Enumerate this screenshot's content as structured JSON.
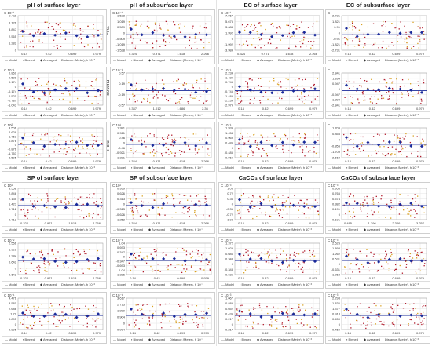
{
  "colors": {
    "points": "#b01a2a",
    "points_alt": "#d9a020",
    "model": "#1a2a9a",
    "averaged": "#1a2a9a",
    "grid": "#e6e6e6",
    "frame": "#cfcfcf"
  },
  "titles": [
    "pH of surface layer",
    "pH of subsurface layer",
    "EC of surface layer",
    "EC of subsurface layer",
    "SP of surface layer",
    "SP of subsurface layer",
    "CaCO₃ of surface layer",
    "CaCO₃ of subsurface layer"
  ],
  "row_labels": [
    "First",
    "Second",
    "Third"
  ],
  "legend": {
    "model": "Model",
    "binned": "Binned",
    "averaged": "Averaged",
    "distance": "Distance (Meter), h"
  },
  "panels": [
    {
      "exp": "C 10⁻¹",
      "dist_exp": "10⁻³",
      "yticks": [
        "9.411",
        "5.126",
        "3.847",
        "2.565",
        "1.282",
        "0"
      ],
      "xticks": [
        "0.14",
        "0.42",
        "0.699",
        "0.979"
      ]
    },
    {
      "exp": "C 10⁻¹",
      "dist_exp": "10⁻²",
      "yticks": [
        "1.528",
        "1.019",
        "0.509",
        "0",
        "-0.509",
        "-1.019",
        "-1.528"
      ],
      "xticks": [
        "0.324",
        "0.971",
        "1.618",
        "2.266"
      ]
    },
    {
      "exp": "C 10⁻¹",
      "dist_exp": "10⁻²",
      "yticks": [
        "7.967",
        "5.675",
        "3.684",
        "1.992",
        "0",
        "-1.992",
        "-3.984"
      ],
      "xticks": [
        "0.324",
        "0.971",
        "1.618",
        "2.266"
      ]
    },
    {
      "exp": "C",
      "dist_exp": "10⁻³",
      "yticks": [
        "2.731",
        "1.821",
        "0.91",
        "0",
        "-0.91",
        "-1.821",
        "-2.731"
      ],
      "xticks": [
        "0.14",
        "0.42",
        "0.699",
        "0.979"
      ]
    },
    {
      "exp": "C 10⁻¹",
      "dist_exp": "10⁻³",
      "yticks": [
        "0.869",
        "0.521",
        "0.174",
        "0",
        "-0.174",
        "-0.521",
        "-0.787",
        "-1.043"
      ],
      "xticks": [
        "0.14",
        "0.42",
        "0.699",
        "0.979"
      ]
    },
    {
      "exp": "C 10⁻¹",
      "dist_exp": "10⁻²",
      "yticks": [
        "0.57",
        "0.19",
        "-0.19",
        "-0.57"
      ],
      "xticks": [
        "0.337",
        "1.012",
        "1.686",
        "2.36"
      ]
    },
    {
      "exp": "C 10⁻¹",
      "dist_exp": "10⁻³",
      "yticks": [
        "2.234",
        "1.489",
        "0.745",
        "0",
        "-0.745",
        "-1.489",
        "-2.234",
        "-2.979"
      ],
      "xticks": [
        "0.14",
        "0.42",
        "0.699",
        "0.979"
      ]
    },
    {
      "exp": "C",
      "dist_exp": "10⁻³",
      "yticks": [
        "2.841",
        "1.894",
        "0.947",
        "0",
        "-0.947",
        "-1.894",
        "-2.841"
      ],
      "xticks": [
        "0.14",
        "0.42",
        "0.699",
        "0.979"
      ]
    },
    {
      "exp": "C 10²",
      "dist_exp": "10⁻³",
      "yticks": [
        "3.506",
        "2.629",
        "1.753",
        "0.876",
        "0",
        "-0.876",
        "-1.753",
        "-3.505"
      ],
      "xticks": [
        "0.14",
        "0.42",
        "0.699",
        "0.979"
      ]
    },
    {
      "exp": "C 10¹",
      "dist_exp": "10⁻²",
      "yticks": [
        "1.381",
        "0.921",
        "0.46",
        "0",
        "-0.46",
        "-0.921",
        "-1.381"
      ],
      "xticks": [
        "0.324",
        "0.971",
        "1.618",
        "2.266"
      ]
    },
    {
      "exp": "C 10⁻¹",
      "dist_exp": "10⁻³",
      "yticks": [
        "1.939",
        "1.454",
        "0.969",
        "0.485",
        "0",
        "-0.485",
        "-0.969"
      ],
      "xticks": [
        "0.14",
        "0.42",
        "0.699",
        "0.979"
      ]
    },
    {
      "exp": "C",
      "dist_exp": "10⁻³",
      "yticks": [
        "1.709",
        "0.855",
        "0",
        "-0.855",
        "-1.709",
        "-2.564"
      ],
      "xticks": [
        "0.14",
        "0.42",
        "0.699",
        "0.979"
      ]
    },
    {
      "exp": "C 10¹",
      "dist_exp": "10⁻²",
      "yticks": [
        "3.558",
        "2.846",
        "2.135",
        "1.423",
        "0.712",
        "0",
        "-0.712"
      ],
      "xticks": [
        "0.324",
        "0.971",
        "1.618",
        "2.266"
      ]
    },
    {
      "exp": "C 10¹",
      "dist_exp": "10⁻²",
      "yticks": [
        "0.939",
        "0.626",
        "0.313",
        "0",
        "-0.313",
        "-0.626",
        "-1.252"
      ],
      "xticks": [
        "0.324",
        "0.971",
        "1.618",
        "2.266"
      ]
    },
    {
      "exp": "C 10⁻³",
      "dist_exp": "10⁻³",
      "yticks": [
        "1.08",
        "0.72",
        "0.36",
        "0",
        "-0.36",
        "-0.72",
        "-1.08"
      ],
      "xticks": [
        "0.14",
        "0.42",
        "0.699",
        "0.979"
      ]
    },
    {
      "exp": "C 10⁻³",
      "dist_exp": "10⁻²",
      "yticks": [
        "0.956",
        "0.765",
        "0.574",
        "0.382",
        "0.191",
        "0",
        "-0.191"
      ],
      "xticks": [
        "0.485",
        "1.396",
        "2.326",
        "3.257"
      ]
    },
    {
      "exp": "C 10⁻²",
      "dist_exp": "10⁻²",
      "yticks": [
        "2.566",
        "1.926",
        "1.284",
        "0.642",
        "0",
        "-0.642"
      ],
      "xticks": [
        "0.324",
        "0.971",
        "1.618",
        "2.266"
      ]
    },
    {
      "exp": "C 10⁻¹",
      "dist_exp": "10⁻³",
      "yticks": [
        "1.04",
        "0.693",
        "0.347",
        "0",
        "-0.347",
        "-0.693",
        "-1.04",
        "-1.386"
      ],
      "xticks": [
        "0.14",
        "0.42",
        "0.699",
        "0.979"
      ]
    },
    {
      "exp": "C 10⁻³",
      "dist_exp": "10⁻³",
      "yticks": [
        "1.372",
        "1.029",
        "0.686",
        "0.343",
        "0",
        "-0.343",
        "-0.686"
      ],
      "xticks": [
        "0.14",
        "0.42",
        "0.699",
        "0.979"
      ]
    },
    {
      "exp": "C 10⁻³",
      "dist_exp": "10⁻³",
      "yticks": [
        "2.525",
        "1.893",
        "1.262",
        "0.631",
        "0",
        "-0.631",
        "-1.262"
      ],
      "xticks": [
        "0.14",
        "0.42",
        "0.699",
        "0.979"
      ]
    },
    {
      "exp": "C 10⁻¹",
      "dist_exp": "10⁻³",
      "yticks": [
        "4.476",
        "3.581",
        "2.686",
        "1.79",
        "0.895",
        "0",
        "-0.895"
      ],
      "xticks": [
        "0.14",
        "0.42",
        "0.699",
        "0.979"
      ]
    },
    {
      "exp": "C 10⁻¹",
      "dist_exp": "10⁻³",
      "yticks": [
        "3.617",
        "2.713",
        "1.809",
        "0.904",
        "0",
        "-0.904"
      ],
      "xticks": [
        "0.14",
        "0.42",
        "0.699",
        "0.979"
      ]
    },
    {
      "exp": "C 10⁻³",
      "dist_exp": "10⁻³",
      "yticks": [
        "1.067",
        "0.889",
        "0.652",
        "0.435",
        "0.217",
        "0",
        "-0.217"
      ],
      "xticks": [
        "0.14",
        "0.42",
        "0.699",
        "0.979"
      ]
    },
    {
      "exp": "C 10⁻³",
      "dist_exp": "10⁻³",
      "yticks": [
        "2.293",
        "1.836",
        "1.377",
        "0.918",
        "0.459",
        "0",
        "-0.459"
      ],
      "xticks": [
        "0.14",
        "0.42",
        "0.699",
        "0.979"
      ]
    }
  ],
  "chart_data": {
    "type": "scatter",
    "description_series": [
      "Model",
      "Binned",
      "Averaged"
    ]
  }
}
